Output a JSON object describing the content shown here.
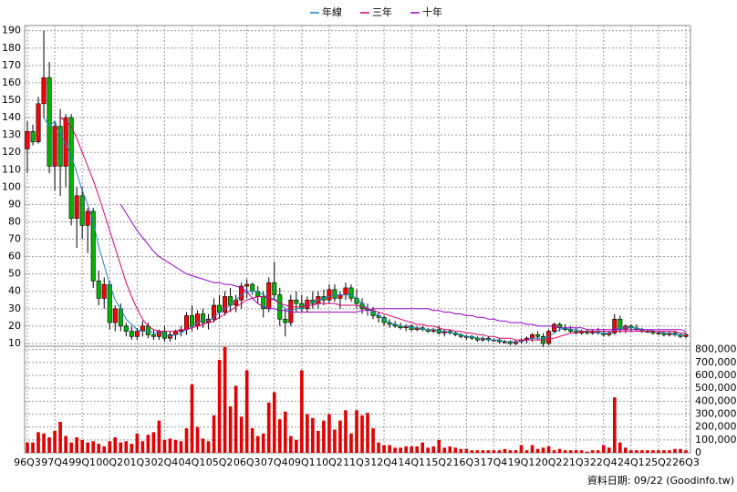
{
  "chart_data": [
    {
      "type": "candlestick",
      "legend": "top",
      "grid": true,
      "up_color": "#ff0000",
      "down_color": "#00b400",
      "ylim": [
        8.4,
        193
      ],
      "yticks": [
        10,
        20,
        30,
        40,
        50,
        60,
        70,
        80,
        90,
        100,
        110,
        120,
        130,
        140,
        150,
        160,
        170,
        180,
        190
      ],
      "open": [
        122,
        132,
        126,
        148,
        163,
        112,
        135,
        112,
        140,
        82,
        95,
        78,
        86,
        46,
        36,
        44,
        22,
        30,
        20,
        17,
        14,
        17,
        20,
        15,
        14,
        17,
        13,
        15,
        17,
        18,
        26,
        20,
        27,
        22,
        24,
        32,
        28,
        37,
        32,
        35,
        43,
        44,
        40,
        37,
        30,
        45,
        38,
        24,
        22,
        35,
        33,
        30,
        35,
        33,
        37,
        35,
        41,
        36,
        38,
        42,
        36,
        33,
        30,
        29,
        26,
        25,
        22,
        21,
        20,
        19,
        20,
        18,
        19,
        18,
        17,
        18,
        16,
        17,
        16,
        15,
        14,
        14,
        13,
        12,
        13,
        12,
        12,
        11,
        11,
        10,
        11,
        12,
        13,
        15,
        14,
        10,
        17,
        21,
        19,
        18,
        17,
        16,
        17,
        16,
        17,
        16,
        15,
        16,
        24,
        18,
        20,
        19,
        18,
        17,
        17,
        16,
        16,
        15,
        16,
        15,
        14
      ],
      "high": [
        138,
        136,
        152,
        190,
        172,
        138,
        145,
        142,
        142,
        100,
        100,
        88,
        88,
        52,
        48,
        46,
        32,
        33,
        22,
        20,
        19,
        23,
        22,
        18,
        18,
        20,
        17,
        18,
        20,
        28,
        32,
        29,
        30,
        27,
        36,
        38,
        40,
        42,
        38,
        45,
        47,
        45,
        43,
        40,
        48,
        57,
        42,
        30,
        38,
        40,
        38,
        37,
        40,
        40,
        41,
        44,
        44,
        40,
        45,
        44,
        41,
        36,
        33,
        31,
        28,
        26,
        24,
        23,
        22,
        21,
        21,
        20,
        20,
        19,
        19,
        20,
        18,
        18,
        17,
        16,
        15,
        15,
        14,
        14,
        14,
        13,
        13,
        12,
        12,
        12,
        13,
        14,
        16,
        17,
        16,
        18,
        22,
        22,
        21,
        20,
        19,
        18,
        18,
        18,
        19,
        18,
        17,
        27,
        26,
        21,
        21,
        21,
        19,
        18,
        18,
        17,
        17,
        17,
        17,
        16,
        16
      ],
      "low": [
        108,
        124,
        125,
        140,
        108,
        98,
        95,
        100,
        78,
        65,
        70,
        62,
        42,
        32,
        30,
        18,
        17,
        17,
        14,
        12,
        12,
        14,
        13,
        12,
        12,
        11,
        11,
        12,
        14,
        15,
        17,
        18,
        19,
        18,
        22,
        24,
        26,
        28,
        28,
        30,
        36,
        38,
        33,
        25,
        28,
        35,
        20,
        14,
        20,
        28,
        28,
        28,
        30,
        30,
        32,
        33,
        34,
        30,
        35,
        34,
        30,
        27,
        26,
        24,
        22,
        20,
        19,
        19,
        18,
        17,
        17,
        17,
        17,
        16,
        16,
        15,
        14,
        15,
        14,
        13,
        12,
        12,
        11,
        11,
        11,
        11,
        10,
        10,
        9,
        9,
        10,
        10,
        11,
        12,
        8,
        9,
        16,
        17,
        17,
        16,
        15,
        15,
        15,
        15,
        15,
        14,
        14,
        15,
        16,
        16,
        17,
        17,
        16,
        16,
        15,
        15,
        14,
        14,
        14,
        13,
        13
      ],
      "close": [
        132,
        126,
        148,
        163,
        112,
        135,
        112,
        140,
        82,
        95,
        78,
        86,
        46,
        36,
        44,
        22,
        30,
        20,
        17,
        14,
        17,
        20,
        15,
        14,
        17,
        13,
        15,
        17,
        18,
        26,
        20,
        27,
        22,
        24,
        32,
        28,
        37,
        32,
        35,
        43,
        44,
        40,
        37,
        30,
        45,
        38,
        24,
        22,
        35,
        33,
        30,
        35,
        33,
        37,
        35,
        41,
        36,
        38,
        42,
        36,
        33,
        30,
        29,
        26,
        25,
        22,
        21,
        20,
        19,
        20,
        18,
        19,
        18,
        17,
        18,
        16,
        17,
        16,
        15,
        14,
        14,
        13,
        12,
        13,
        12,
        12,
        11,
        11,
        10,
        11,
        12,
        13,
        15,
        14,
        10,
        17,
        21,
        19,
        18,
        17,
        16,
        17,
        16,
        17,
        16,
        15,
        16,
        24,
        18,
        20,
        19,
        18,
        17,
        17,
        16,
        16,
        15,
        16,
        15,
        14,
        15
      ],
      "series": [
        {
          "name": "年線",
          "color": "#1e7fc8",
          "values": [
            null,
            null,
            null,
            140,
            135,
            138,
            130,
            125,
            118,
            108,
            98,
            90,
            80,
            66,
            55,
            44,
            35,
            30,
            24,
            21,
            18,
            17,
            17,
            16,
            16,
            15,
            14,
            15,
            16,
            18,
            20,
            22,
            24,
            23,
            25,
            28,
            30,
            32,
            35,
            38,
            40,
            40,
            40,
            38,
            36,
            36,
            33,
            30,
            29,
            30,
            30,
            32,
            34,
            35,
            36,
            37,
            38,
            38,
            38,
            38,
            36,
            33,
            30,
            28,
            26,
            24,
            22,
            21,
            20,
            20,
            19,
            19,
            18,
            18,
            18,
            17,
            17,
            16,
            16,
            15,
            14,
            14,
            13,
            13,
            12,
            12,
            12,
            11,
            11,
            11,
            11,
            12,
            13,
            13,
            13,
            14,
            16,
            18,
            19,
            18,
            18,
            17,
            17,
            17,
            16,
            16,
            16,
            18,
            19,
            19,
            19,
            19,
            18,
            18,
            17,
            17,
            16,
            16,
            15,
            15,
            15
          ]
        },
        {
          "name": "三年",
          "color": "#d8006a",
          "values": [
            null,
            null,
            null,
            null,
            null,
            null,
            140,
            138,
            135,
            128,
            120,
            112,
            104,
            95,
            85,
            75,
            65,
            55,
            45,
            37,
            30,
            24,
            20,
            18,
            17,
            17,
            17,
            17,
            18,
            18,
            19,
            20,
            21,
            22,
            23,
            25,
            27,
            29,
            31,
            33,
            35,
            36,
            37,
            37,
            36,
            35,
            33,
            32,
            31,
            31,
            31,
            32,
            32,
            33,
            33,
            33,
            33,
            32,
            32,
            32,
            32,
            31,
            30,
            29,
            28,
            27,
            26,
            25,
            24,
            23,
            22,
            21,
            21,
            20,
            20,
            19,
            18,
            18,
            17,
            17,
            16,
            16,
            15,
            15,
            14,
            14,
            13,
            13,
            13,
            12,
            12,
            12,
            12,
            12,
            12,
            13,
            13,
            14,
            15,
            16,
            16,
            17,
            17,
            17,
            17,
            17,
            17,
            17,
            17,
            17,
            17,
            17,
            17,
            17,
            17,
            17,
            17,
            17,
            17,
            16,
            16
          ]
        },
        {
          "name": "十年",
          "color": "#9900cc",
          "values": [
            null,
            null,
            null,
            null,
            null,
            null,
            null,
            null,
            null,
            null,
            null,
            null,
            null,
            null,
            null,
            null,
            null,
            90,
            85,
            80,
            75,
            71,
            67,
            63,
            60,
            58,
            56,
            54,
            52,
            50,
            49,
            48,
            47,
            46,
            45,
            45,
            44,
            44,
            43,
            42,
            40,
            36,
            33,
            31,
            30,
            30,
            29,
            29,
            28,
            28,
            28,
            28,
            28,
            28,
            28,
            28,
            28,
            28,
            28,
            28,
            28,
            29,
            29,
            30,
            30,
            30,
            30,
            30,
            30,
            30,
            30,
            30,
            30,
            30,
            29,
            29,
            28,
            28,
            27,
            27,
            26,
            26,
            25,
            25,
            24,
            24,
            23,
            23,
            22,
            22,
            22,
            21,
            21,
            20,
            20,
            20,
            20,
            19,
            19,
            19,
            19,
            19,
            18,
            18,
            18,
            18,
            18,
            18,
            18,
            18,
            18,
            18,
            18,
            18,
            18,
            18,
            18,
            18,
            18,
            18,
            17
          ]
        }
      ]
    },
    {
      "type": "bar",
      "grid": true,
      "color": "#e00000",
      "axis_side": "right",
      "ylim": [
        0,
        826000
      ],
      "yticks": [
        0,
        {
          "value": 100000,
          "label": "100,000"
        },
        {
          "value": 200000,
          "label": "200,000"
        },
        {
          "value": 300000,
          "label": "300,000"
        },
        {
          "value": 400000,
          "label": "400,000"
        },
        {
          "value": 500000,
          "label": "500,000"
        },
        {
          "value": 600000,
          "label": "600,000"
        },
        {
          "value": 700000,
          "label": "700,000"
        },
        {
          "value": 800000,
          "label": "800,000"
        }
      ],
      "categories": [
        "96Q3",
        null,
        null,
        null,
        null,
        "97Q4",
        null,
        null,
        null,
        null,
        "99Q1",
        null,
        null,
        null,
        null,
        "00Q2",
        null,
        null,
        null,
        null,
        "01Q3",
        null,
        null,
        null,
        null,
        "02Q4",
        null,
        null,
        null,
        null,
        "04Q1",
        null,
        null,
        null,
        null,
        "05Q2",
        null,
        null,
        null,
        null,
        "06Q3",
        null,
        null,
        null,
        null,
        "07Q4",
        null,
        null,
        null,
        null,
        "09Q1",
        null,
        null,
        null,
        null,
        "10Q2",
        null,
        null,
        null,
        null,
        "11Q3",
        null,
        null,
        null,
        null,
        "12Q4",
        null,
        null,
        null,
        null,
        "14Q1",
        null,
        null,
        null,
        null,
        "15Q2",
        null,
        null,
        null,
        null,
        "16Q3",
        null,
        null,
        null,
        null,
        "17Q4",
        null,
        null,
        null,
        null,
        "19Q1",
        null,
        null,
        null,
        null,
        "20Q2",
        null,
        null,
        null,
        null,
        "21Q3",
        null,
        null,
        null,
        null,
        "22Q4",
        null,
        null,
        null,
        null,
        "24Q1",
        null,
        null,
        null,
        null,
        "25Q2",
        null,
        null,
        null,
        null,
        "26Q3"
      ],
      "values": [
        80000,
        80000,
        160000,
        150000,
        120000,
        170000,
        240000,
        130000,
        80000,
        120000,
        100000,
        80000,
        90000,
        70000,
        50000,
        90000,
        120000,
        80000,
        90000,
        70000,
        150000,
        90000,
        140000,
        160000,
        250000,
        100000,
        110000,
        100000,
        90000,
        190000,
        530000,
        200000,
        110000,
        90000,
        290000,
        720000,
        820000,
        360000,
        520000,
        280000,
        640000,
        190000,
        130000,
        150000,
        390000,
        470000,
        260000,
        320000,
        130000,
        100000,
        640000,
        300000,
        270000,
        170000,
        250000,
        300000,
        180000,
        250000,
        330000,
        150000,
        330000,
        290000,
        310000,
        190000,
        80000,
        60000,
        60000,
        40000,
        40000,
        50000,
        50000,
        50000,
        80000,
        40000,
        50000,
        100000,
        40000,
        50000,
        40000,
        30000,
        30000,
        20000,
        20000,
        20000,
        20000,
        20000,
        20000,
        30000,
        20000,
        20000,
        60000,
        20000,
        60000,
        30000,
        40000,
        50000,
        20000,
        30000,
        20000,
        20000,
        20000,
        20000,
        10000,
        20000,
        20000,
        60000,
        40000,
        430000,
        80000,
        40000,
        20000,
        20000,
        20000,
        20000,
        20000,
        20000,
        20000,
        20000,
        30000,
        30000,
        20000
      ]
    }
  ],
  "footer": "資料日期: 09/22 (Goodinfo.tw)"
}
